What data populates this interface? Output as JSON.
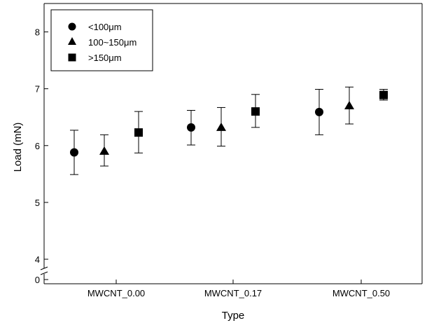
{
  "chart_data": {
    "type": "scatter",
    "title": "",
    "xlabel": "Type",
    "ylabel": "Load (mN)",
    "categories": [
      "MWCNT_0.00",
      "MWCNT_0.17",
      "MWCNT_0.50"
    ],
    "ylim": [
      4,
      8.5
    ],
    "yticks": [
      "4",
      "5",
      "6",
      "7",
      "8"
    ],
    "y_axis_break": true,
    "y_axis_break_label": "0",
    "grid": false,
    "legend_position": "top-left",
    "series": [
      {
        "name": "<100μm",
        "marker": "circle",
        "values": [
          5.88,
          6.32,
          6.59
        ],
        "err_low": [
          5.49,
          6.01,
          6.19
        ],
        "err_high": [
          6.27,
          6.62,
          6.99
        ]
      },
      {
        "name": "100~150μm",
        "marker": "triangle",
        "values": [
          5.9,
          6.32,
          6.7
        ],
        "err_low": [
          5.64,
          5.99,
          6.38
        ],
        "err_high": [
          6.19,
          6.67,
          7.03
        ]
      },
      {
        "name": ">150μm",
        "marker": "square",
        "values": [
          6.23,
          6.6,
          6.89
        ],
        "err_low": [
          5.87,
          6.32,
          6.8
        ],
        "err_high": [
          6.6,
          6.9,
          6.99
        ]
      }
    ]
  }
}
